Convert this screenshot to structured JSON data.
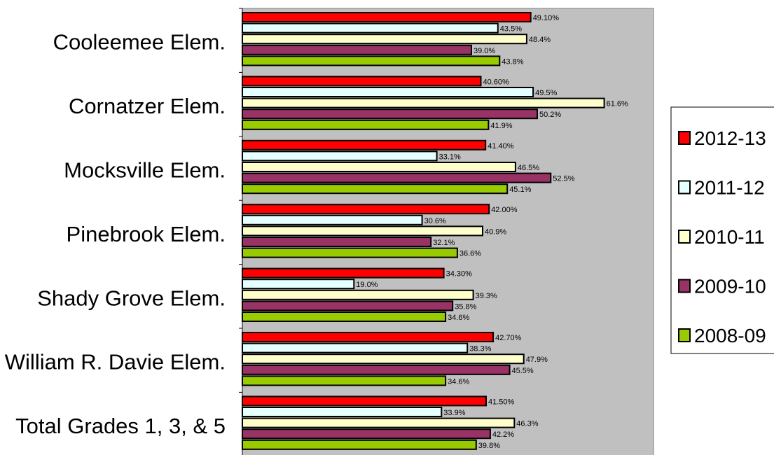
{
  "chart_data": {
    "type": "bar",
    "orientation": "horizontal",
    "title": "",
    "xlabel": "",
    "ylabel": "",
    "xlim": [
      0,
      70
    ],
    "grid": false,
    "legend_position": "right",
    "plot_background": "#c0c0c0",
    "categories": [
      "Cooleemee Elem.",
      "Cornatzer Elem.",
      "Mocksville Elem.",
      "Pinebrook Elem.",
      "Shady Grove Elem.",
      "William R. Davie Elem.",
      "Total Grades 1, 3, & 5"
    ],
    "series": [
      {
        "name": "2012-13",
        "color": "#ff0000",
        "values": [
          49.1,
          40.6,
          41.4,
          42.0,
          34.3,
          42.7,
          41.5
        ],
        "labels": [
          "49.10%",
          "40.60%",
          "41.40%",
          "42.00%",
          "34.30%",
          "42.70%",
          "41.50%"
        ]
      },
      {
        "name": "2011-12",
        "color": "#e6ffff",
        "values": [
          43.5,
          49.5,
          33.1,
          30.6,
          19.0,
          38.3,
          33.9
        ],
        "labels": [
          "43.5%",
          "49.5%",
          "33.1%",
          "30.6%",
          "19.0%",
          "38.3%",
          "33.9%"
        ]
      },
      {
        "name": "2010-11",
        "color": "#ffffcc",
        "values": [
          48.4,
          61.6,
          46.5,
          40.9,
          39.3,
          47.9,
          46.3
        ],
        "labels": [
          "48.4%",
          "61.6%",
          "46.5%",
          "40.9%",
          "39.3%",
          "47.9%",
          "46.3%"
        ]
      },
      {
        "name": "2009-10",
        "color": "#993366",
        "values": [
          39.0,
          50.2,
          52.5,
          32.1,
          35.8,
          45.5,
          42.2
        ],
        "labels": [
          "39.0%",
          "50.2%",
          "52.5%",
          "32.1%",
          "35.8%",
          "45.5%",
          "42.2%"
        ]
      },
      {
        "name": "2008-09",
        "color": "#99cc00",
        "values": [
          43.8,
          41.9,
          45.1,
          36.6,
          34.6,
          34.6,
          39.8
        ],
        "labels": [
          "43.8%",
          "41.9%",
          "45.1%",
          "36.6%",
          "34.6%",
          "34.6%",
          "39.8%"
        ]
      }
    ]
  }
}
